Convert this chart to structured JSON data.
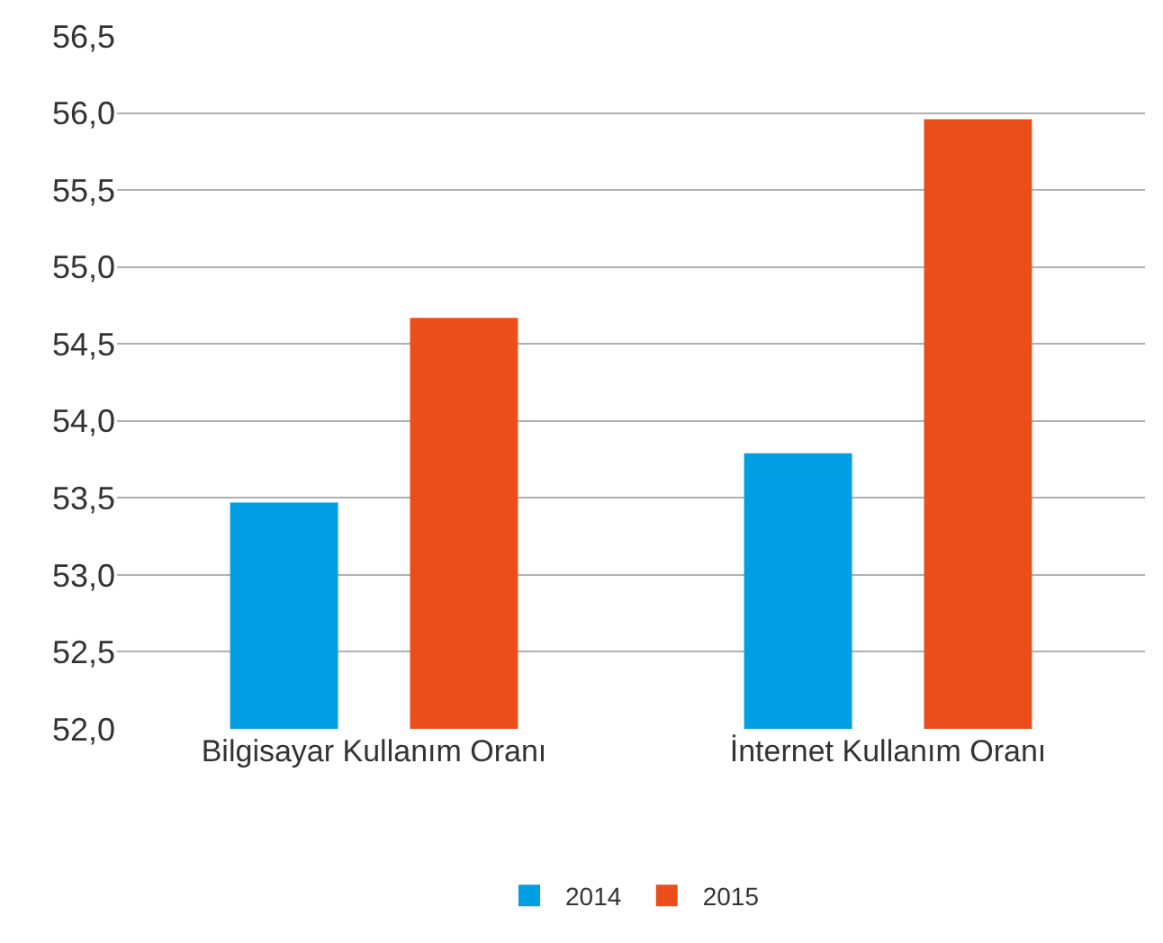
{
  "chart_data": {
    "type": "bar",
    "categories": [
      "Bilgisayar Kullanım Oranı",
      "İnternet Kullanım Oranı"
    ],
    "series": [
      {
        "name": "2014",
        "color": "#009fe3",
        "values": [
          53.47,
          53.79
        ]
      },
      {
        "name": "2015",
        "color": "#e94e1b",
        "values": [
          54.67,
          55.96
        ]
      }
    ],
    "ylim": [
      52.0,
      56.5
    ],
    "yticks": [
      {
        "value": 52.0,
        "label": "52,0"
      },
      {
        "value": 52.5,
        "label": "52,5"
      },
      {
        "value": 53.0,
        "label": "53,0"
      },
      {
        "value": 53.5,
        "label": "53,5"
      },
      {
        "value": 54.0,
        "label": "54,0"
      },
      {
        "value": 54.5,
        "label": "54,5"
      },
      {
        "value": 55.0,
        "label": "55,0"
      },
      {
        "value": 55.5,
        "label": "55,5"
      },
      {
        "value": 56.0,
        "label": "56,0"
      },
      {
        "value": 56.5,
        "label": "56,5"
      }
    ],
    "grid": "y",
    "legend": "bottom"
  }
}
